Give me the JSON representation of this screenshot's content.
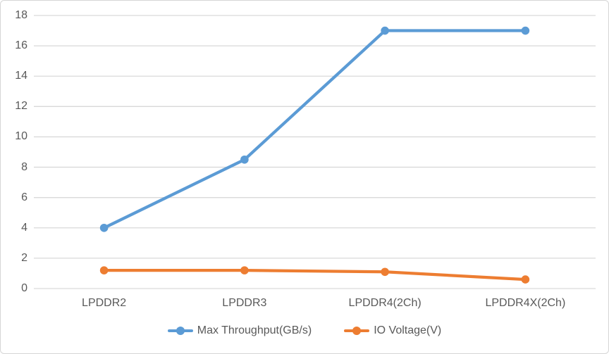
{
  "figure": {
    "background_color": "#ffffff",
    "border_color": "#d6d6d6"
  },
  "chart_data": {
    "type": "line",
    "title": "",
    "xlabel": "",
    "ylabel": "",
    "categories": [
      "LPDDR2",
      "LPDDR3",
      "LPDDR4(2Ch)",
      "LPDDR4X(2Ch)"
    ],
    "series": [
      {
        "name": "Max Throughput(GB/s)",
        "color": "#5b9bd5",
        "values": [
          4,
          8.5,
          17,
          17
        ]
      },
      {
        "name": "IO Voltage(V)",
        "color": "#ed7d31",
        "values": [
          1.2,
          1.2,
          1.1,
          0.6
        ]
      }
    ],
    "ylim": [
      0,
      18
    ],
    "yticks": [
      0,
      2,
      4,
      6,
      8,
      10,
      12,
      14,
      16,
      18
    ],
    "grid": "horizontal",
    "gridline_color": "#d9d9d9",
    "tick_label_color": "#595959",
    "legend_position": "bottom"
  }
}
